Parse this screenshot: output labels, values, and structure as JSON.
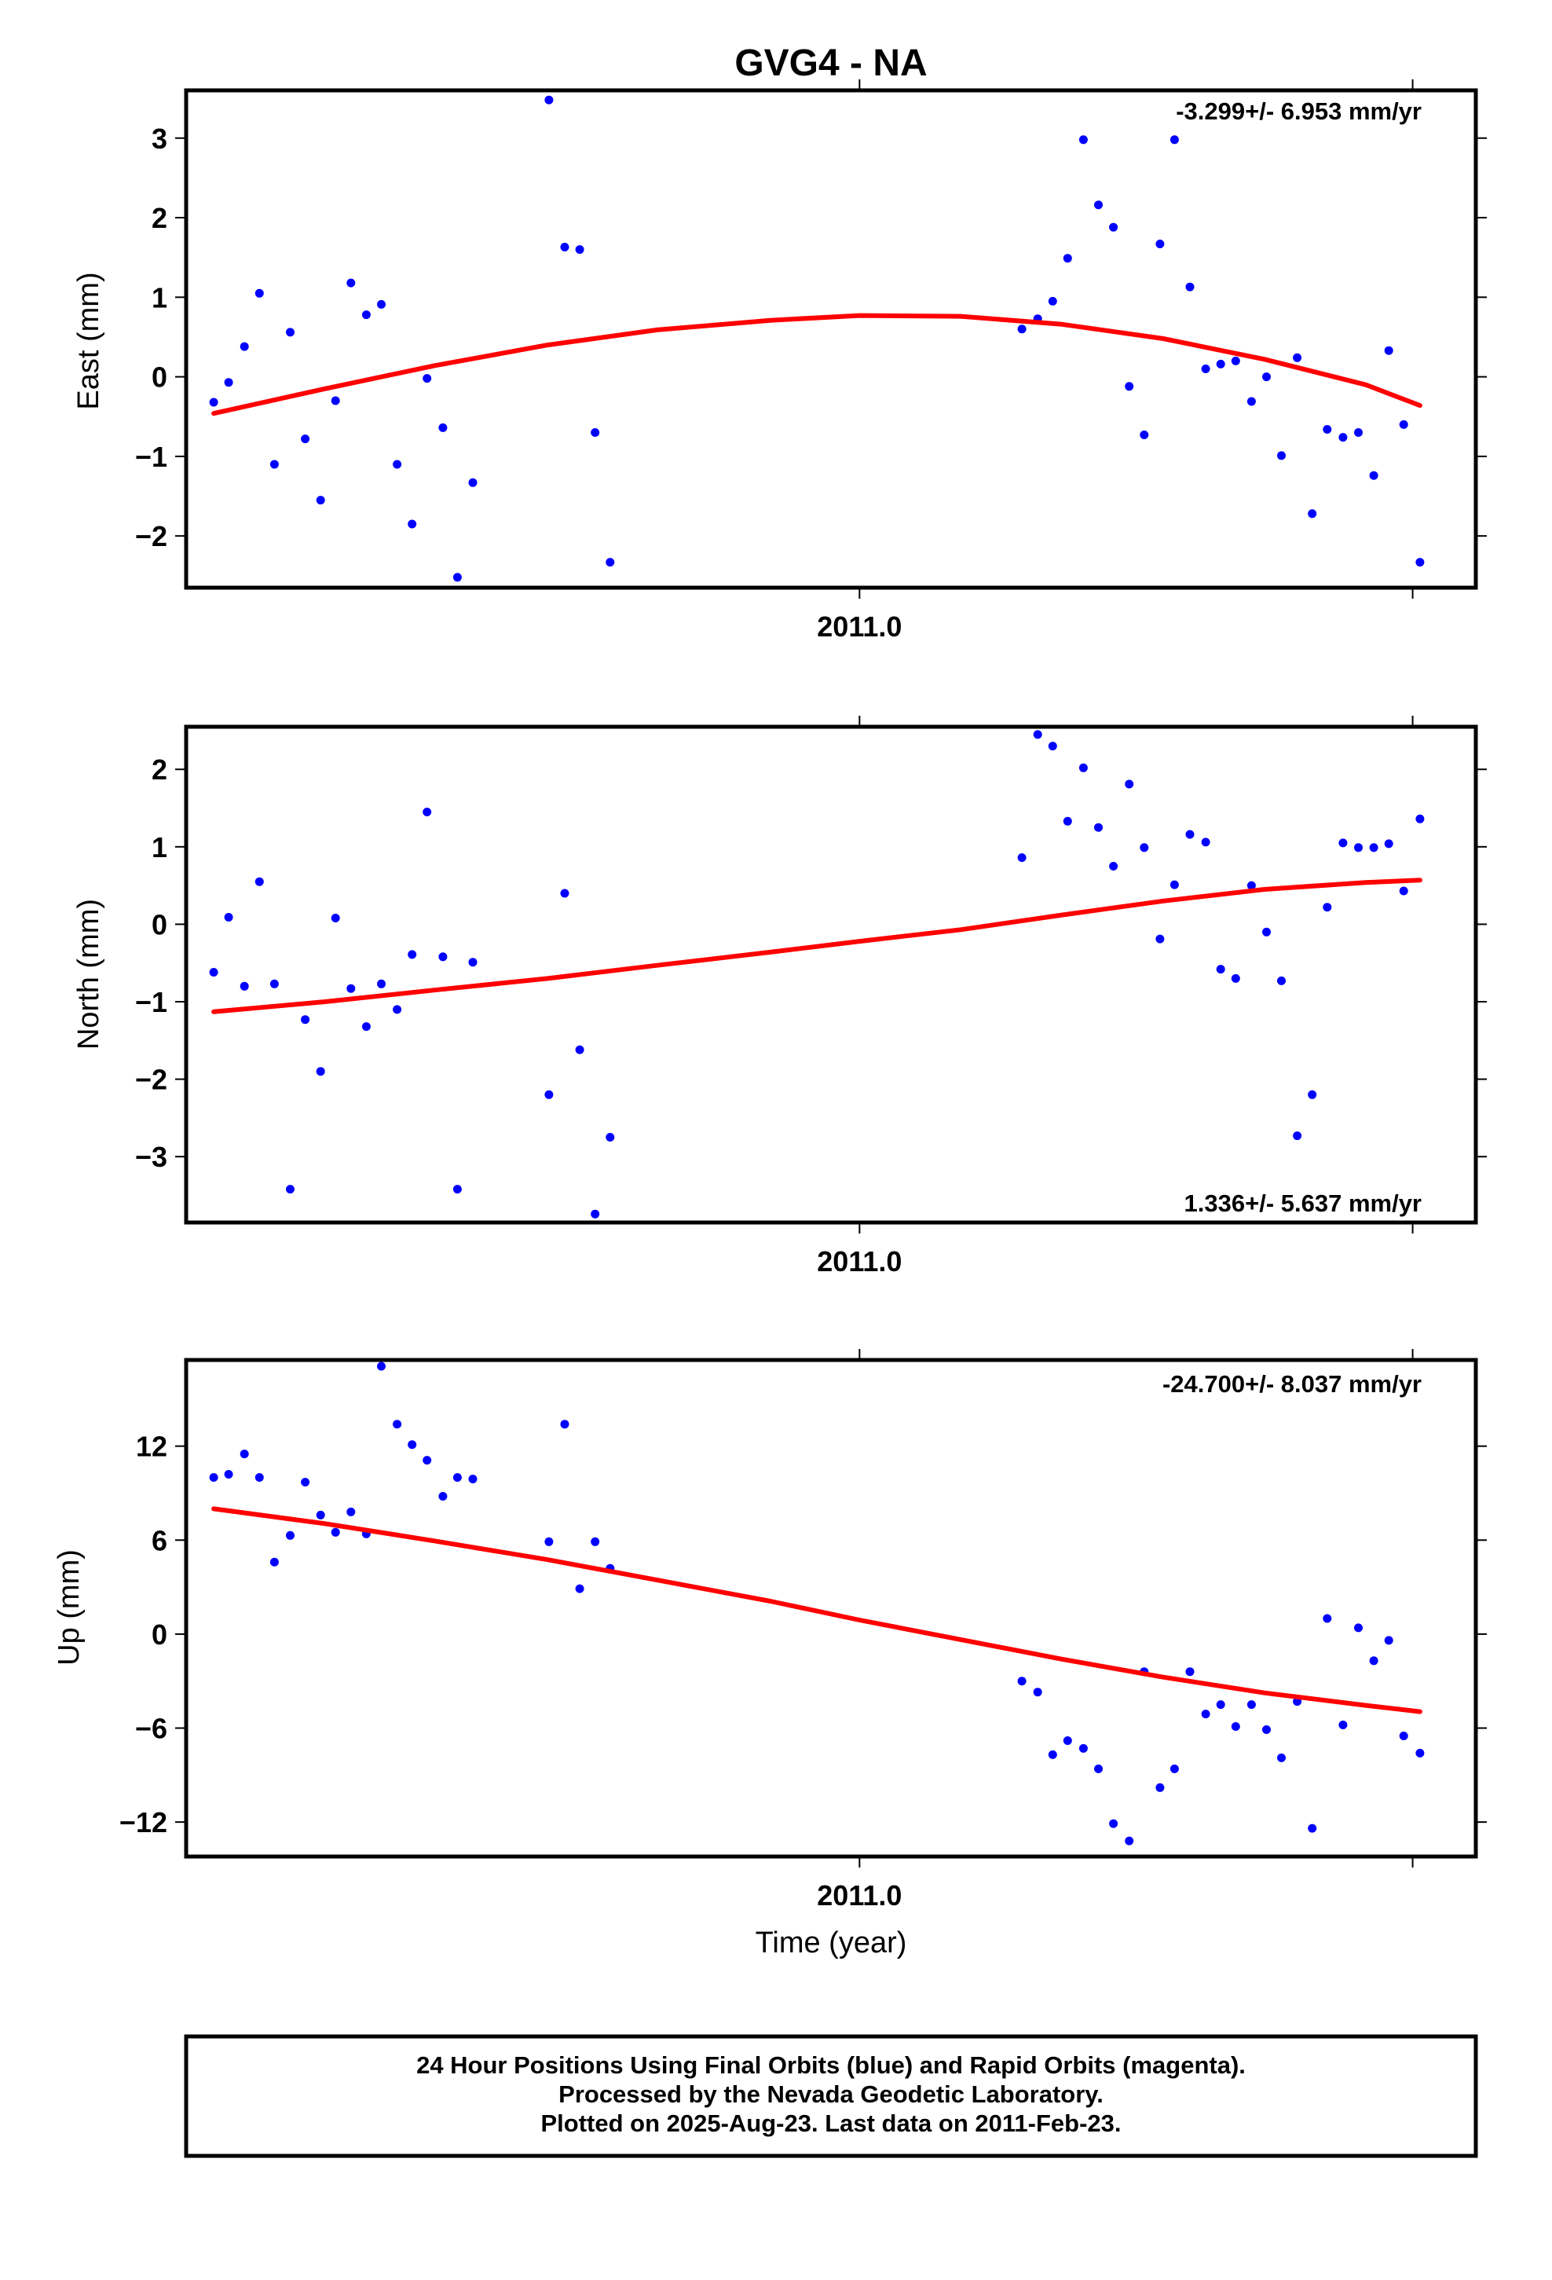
{
  "title": "GVG4 - NA",
  "xlabel": "Time (year)",
  "colors": {
    "points": "#0000ff",
    "fit": "#ff0000",
    "frame": "#000000"
  },
  "footer": {
    "line1": "24 Hour Positions Using Final Orbits (blue) and Rapid Orbits (magenta).",
    "line2": "Processed by the Nevada Geodetic Laboratory.",
    "line3": "Plotted on 2025-Aug-23. Last data on 2011-Feb-23."
  },
  "chart_data": [
    {
      "type": "scatter",
      "ylabel": "East (mm)",
      "rate_label": "-3.299+/- 6.953 mm/yr",
      "xlim": [
        2010.8337,
        2011.1522
      ],
      "ylim": [
        -2.65,
        3.6
      ],
      "xticks": [
        {
          "value": 2011.0,
          "label": "2011.0"
        },
        {
          "value": 2011.1366,
          "label": ""
        }
      ],
      "yticks": [
        {
          "value": 3,
          "label": "3"
        },
        {
          "value": 2,
          "label": "2"
        },
        {
          "value": 1,
          "label": "1"
        },
        {
          "value": 0,
          "label": "0"
        },
        {
          "value": -1,
          "label": "−1"
        },
        {
          "value": -2,
          "label": "−2"
        }
      ],
      "points": [
        [
          2010.8405,
          -0.32
        ],
        [
          2010.8442,
          -0.07
        ],
        [
          2010.8481,
          0.38
        ],
        [
          2010.8518,
          1.05
        ],
        [
          2010.8555,
          -1.1
        ],
        [
          2010.8594,
          0.56
        ],
        [
          2010.8631,
          -0.78
        ],
        [
          2010.8669,
          -1.55
        ],
        [
          2010.8706,
          -0.3
        ],
        [
          2010.8744,
          1.18
        ],
        [
          2010.8782,
          0.78
        ],
        [
          2010.8819,
          0.91
        ],
        [
          2010.8858,
          -1.1
        ],
        [
          2010.8895,
          -1.85
        ],
        [
          2010.8932,
          -0.02
        ],
        [
          2010.8971,
          -0.64
        ],
        [
          2010.9007,
          -2.52
        ],
        [
          2010.9045,
          -1.33
        ],
        [
          2010.9233,
          3.48
        ],
        [
          2010.9272,
          1.63
        ],
        [
          2010.9309,
          1.6
        ],
        [
          2010.9347,
          -0.7
        ],
        [
          2010.9384,
          -2.33
        ],
        [
          2011.0401,
          0.6
        ],
        [
          2011.044,
          0.73
        ],
        [
          2011.0477,
          0.95
        ],
        [
          2011.0514,
          1.49
        ],
        [
          2011.0553,
          2.98
        ],
        [
          2011.059,
          2.16
        ],
        [
          2011.0627,
          1.88
        ],
        [
          2011.0666,
          -0.12
        ],
        [
          2011.0703,
          -0.73
        ],
        [
          2011.0742,
          1.67
        ],
        [
          2011.0778,
          2.98
        ],
        [
          2011.0816,
          1.13
        ],
        [
          2011.0855,
          0.1
        ],
        [
          2011.0892,
          0.16
        ],
        [
          2011.0929,
          0.2
        ],
        [
          2011.0968,
          -0.31
        ],
        [
          2011.1005,
          0.0
        ],
        [
          2011.1042,
          -0.99
        ],
        [
          2011.1081,
          0.24
        ],
        [
          2011.1118,
          -1.72
        ],
        [
          2011.1155,
          -0.66
        ],
        [
          2011.1194,
          -0.76
        ],
        [
          2011.1232,
          -0.7
        ],
        [
          2011.127,
          -1.24
        ],
        [
          2011.1307,
          0.33
        ],
        [
          2011.1344,
          -0.6
        ],
        [
          2011.1384,
          -2.33
        ]
      ],
      "fit": [
        [
          2010.8405,
          -0.46
        ],
        [
          2010.868,
          -0.15
        ],
        [
          2010.895,
          0.14
        ],
        [
          2010.923,
          0.4
        ],
        [
          2010.95,
          0.59
        ],
        [
          2010.978,
          0.71
        ],
        [
          2011.0,
          0.77
        ],
        [
          2011.025,
          0.76
        ],
        [
          2011.05,
          0.66
        ],
        [
          2011.075,
          0.48
        ],
        [
          2011.1,
          0.22
        ],
        [
          2011.125,
          -0.1
        ],
        [
          2011.1384,
          -0.36
        ]
      ]
    },
    {
      "type": "scatter",
      "ylabel": "North (mm)",
      "rate_label": "1.336+/- 5.637 mm/yr",
      "xlim": [
        2010.8337,
        2011.1522
      ],
      "ylim": [
        -3.85,
        2.55
      ],
      "xticks": [
        {
          "value": 2011.0,
          "label": "2011.0"
        },
        {
          "value": 2011.1366,
          "label": ""
        }
      ],
      "yticks": [
        {
          "value": 2,
          "label": "2"
        },
        {
          "value": 1,
          "label": "1"
        },
        {
          "value": 0,
          "label": "0"
        },
        {
          "value": -1,
          "label": "−1"
        },
        {
          "value": -2,
          "label": "−2"
        },
        {
          "value": -3,
          "label": "−3"
        }
      ],
      "points": [
        [
          2010.8405,
          -0.62
        ],
        [
          2010.8442,
          0.09
        ],
        [
          2010.8481,
          -0.8
        ],
        [
          2010.8518,
          0.55
        ],
        [
          2010.8555,
          -0.77
        ],
        [
          2010.8594,
          -3.42
        ],
        [
          2010.8631,
          -1.23
        ],
        [
          2010.8669,
          -1.9
        ],
        [
          2010.8706,
          0.08
        ],
        [
          2010.8744,
          -0.83
        ],
        [
          2010.8782,
          -1.32
        ],
        [
          2010.8819,
          -0.77
        ],
        [
          2010.8858,
          -1.1
        ],
        [
          2010.8895,
          -0.39
        ],
        [
          2010.8932,
          1.45
        ],
        [
          2010.8971,
          -0.42
        ],
        [
          2010.9007,
          -3.42
        ],
        [
          2010.9045,
          -0.49
        ],
        [
          2010.9233,
          -2.2
        ],
        [
          2010.9272,
          0.4
        ],
        [
          2010.9309,
          -1.62
        ],
        [
          2010.9347,
          -3.74
        ],
        [
          2010.9384,
          -2.75
        ],
        [
          2011.0401,
          0.86
        ],
        [
          2011.044,
          2.45
        ],
        [
          2011.0477,
          2.3
        ],
        [
          2011.0514,
          1.33
        ],
        [
          2011.0553,
          2.02
        ],
        [
          2011.059,
          1.25
        ],
        [
          2011.0627,
          0.75
        ],
        [
          2011.0666,
          1.81
        ],
        [
          2011.0703,
          0.99
        ],
        [
          2011.0742,
          -0.19
        ],
        [
          2011.0778,
          0.51
        ],
        [
          2011.0816,
          1.16
        ],
        [
          2011.0855,
          1.06
        ],
        [
          2011.0892,
          -0.58
        ],
        [
          2011.0929,
          -0.7
        ],
        [
          2011.0968,
          0.5
        ],
        [
          2011.1005,
          -0.1
        ],
        [
          2011.1042,
          -0.73
        ],
        [
          2011.1081,
          -2.73
        ],
        [
          2011.1118,
          -2.2
        ],
        [
          2011.1155,
          0.22
        ],
        [
          2011.1194,
          1.05
        ],
        [
          2011.1232,
          0.99
        ],
        [
          2011.127,
          0.99
        ],
        [
          2011.1307,
          1.04
        ],
        [
          2011.1344,
          0.43
        ],
        [
          2011.1384,
          1.36
        ]
      ],
      "fit": [
        [
          2010.8405,
          -1.13
        ],
        [
          2010.868,
          -1.0
        ],
        [
          2010.895,
          -0.85
        ],
        [
          2010.923,
          -0.7
        ],
        [
          2010.95,
          -0.53
        ],
        [
          2010.978,
          -0.36
        ],
        [
          2011.0,
          -0.22
        ],
        [
          2011.025,
          -0.07
        ],
        [
          2011.05,
          0.12
        ],
        [
          2011.075,
          0.3
        ],
        [
          2011.1,
          0.45
        ],
        [
          2011.125,
          0.54
        ],
        [
          2011.1384,
          0.57
        ]
      ]
    },
    {
      "type": "scatter",
      "ylabel": "Up (mm)",
      "rate_label": "-24.700+/- 8.037 mm/yr",
      "xlim": [
        2010.8337,
        2011.1522
      ],
      "ylim": [
        -14.2,
        17.5
      ],
      "xticks": [
        {
          "value": 2011.0,
          "label": "2011.0"
        },
        {
          "value": 2011.1366,
          "label": ""
        }
      ],
      "yticks": [
        {
          "value": 12,
          "label": "12"
        },
        {
          "value": 6,
          "label": "6"
        },
        {
          "value": 0,
          "label": "0"
        },
        {
          "value": -6,
          "label": "−6"
        },
        {
          "value": -12,
          "label": "−12"
        }
      ],
      "points": [
        [
          2010.8405,
          10.0
        ],
        [
          2010.8442,
          10.2
        ],
        [
          2010.8481,
          11.5
        ],
        [
          2010.8518,
          10.0
        ],
        [
          2010.8555,
          4.6
        ],
        [
          2010.8594,
          6.3
        ],
        [
          2010.8631,
          9.7
        ],
        [
          2010.8669,
          7.6
        ],
        [
          2010.8706,
          6.5
        ],
        [
          2010.8744,
          7.8
        ],
        [
          2010.8782,
          6.4
        ],
        [
          2010.8819,
          17.1
        ],
        [
          2010.8858,
          13.4
        ],
        [
          2010.8895,
          12.1
        ],
        [
          2010.8932,
          11.1
        ],
        [
          2010.8971,
          8.8
        ],
        [
          2010.9007,
          10.0
        ],
        [
          2010.9045,
          9.9
        ],
        [
          2010.9233,
          5.9
        ],
        [
          2010.9272,
          13.4
        ],
        [
          2010.9309,
          2.9
        ],
        [
          2010.9347,
          5.9
        ],
        [
          2010.9384,
          4.2
        ],
        [
          2011.0401,
          -3.0
        ],
        [
          2011.044,
          -3.7
        ],
        [
          2011.0477,
          -7.7
        ],
        [
          2011.0514,
          -6.8
        ],
        [
          2011.0553,
          -7.3
        ],
        [
          2011.059,
          -8.6
        ],
        [
          2011.0627,
          -12.1
        ],
        [
          2011.0666,
          -13.2
        ],
        [
          2011.0703,
          -2.4
        ],
        [
          2011.0742,
          -9.8
        ],
        [
          2011.0778,
          -8.6
        ],
        [
          2011.0816,
          -2.4
        ],
        [
          2011.0855,
          -5.1
        ],
        [
          2011.0892,
          -4.5
        ],
        [
          2011.0929,
          -5.9
        ],
        [
          2011.0968,
          -4.5
        ],
        [
          2011.1005,
          -6.1
        ],
        [
          2011.1042,
          -7.9
        ],
        [
          2011.1081,
          -4.3
        ],
        [
          2011.1118,
          -12.4
        ],
        [
          2011.1155,
          1.0
        ],
        [
          2011.1194,
          -5.8
        ],
        [
          2011.1232,
          0.4
        ],
        [
          2011.127,
          -1.7
        ],
        [
          2011.1307,
          -0.4
        ],
        [
          2011.1344,
          -6.5
        ],
        [
          2011.1384,
          -7.6
        ]
      ],
      "fit": [
        [
          2010.8405,
          8.0
        ],
        [
          2010.868,
          7.05
        ],
        [
          2010.895,
          5.95
        ],
        [
          2010.923,
          4.75
        ],
        [
          2010.95,
          3.45
        ],
        [
          2010.978,
          2.1
        ],
        [
          2011.0,
          0.9
        ],
        [
          2011.025,
          -0.35
        ],
        [
          2011.05,
          -1.6
        ],
        [
          2011.075,
          -2.75
        ],
        [
          2011.1,
          -3.75
        ],
        [
          2011.125,
          -4.55
        ],
        [
          2011.1384,
          -4.95
        ]
      ]
    }
  ]
}
